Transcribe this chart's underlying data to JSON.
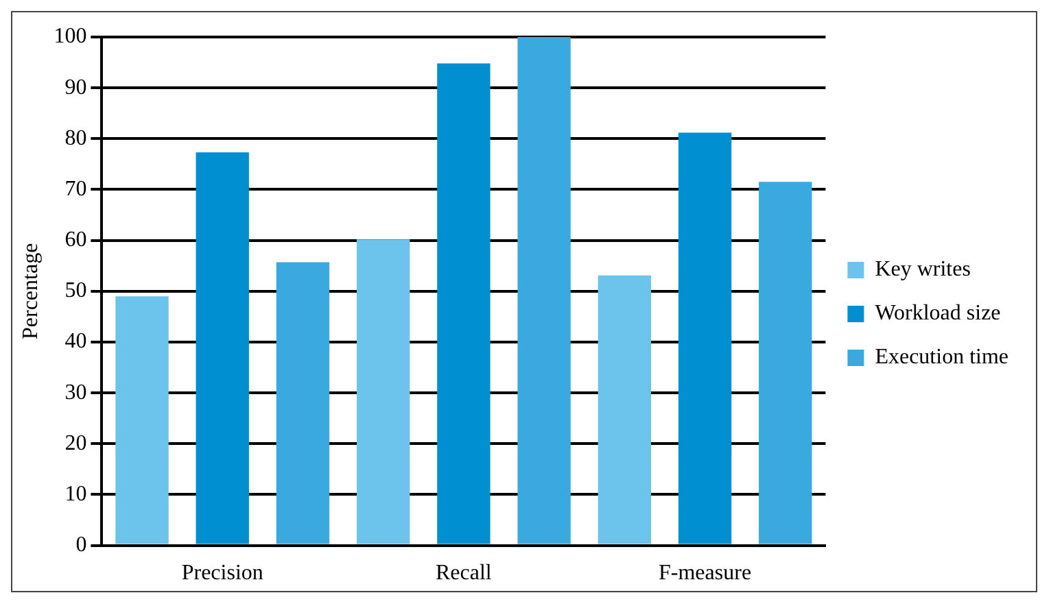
{
  "chart_data": {
    "type": "bar",
    "ylabel": "Percentage",
    "categories": [
      "Precision",
      "Recall",
      "F-measure"
    ],
    "series": [
      {
        "name": "Key writes",
        "color": "#6cc3ec",
        "values": [
          49,
          60.2,
          53.1
        ]
      },
      {
        "name": "Workload size",
        "color": "#008fd0",
        "values": [
          77.3,
          94.8,
          81.2
        ]
      },
      {
        "name": "Execution time",
        "color": "#3aa9df",
        "values": [
          55.7,
          100,
          71.5
        ]
      }
    ],
    "ylim": [
      0,
      100
    ],
    "yticks": [
      0,
      10,
      20,
      30,
      40,
      50,
      60,
      70,
      80,
      90,
      100
    ],
    "grid": "y",
    "legend": "right"
  }
}
